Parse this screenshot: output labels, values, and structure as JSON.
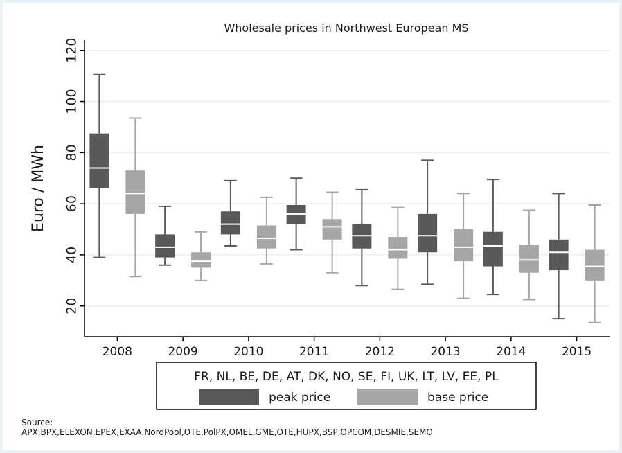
{
  "chart_data": {
    "type": "boxplot",
    "title": "Wholesale prices in Northwest European MS",
    "ylabel": "Euro / MWh",
    "ylim": [
      8,
      124
    ],
    "yticks": [
      20,
      40,
      60,
      80,
      100,
      120
    ],
    "grid": true,
    "categories": [
      "2008",
      "2009",
      "2010",
      "2011",
      "2012",
      "2013",
      "2014",
      "2015"
    ],
    "legend": {
      "title": "FR, NL, BE, DE, AT, DK, NO, SE, FI, UK, LT, LV, EE, PL",
      "position": "bottom"
    },
    "series": [
      {
        "name": "peak price",
        "color": "#595959",
        "boxes": [
          {
            "min": 39,
            "q1": 66,
            "median": 74,
            "q3": 87.5,
            "max": 110.5
          },
          {
            "min": 36,
            "q1": 39,
            "median": 43,
            "q3": 48,
            "max": 59
          },
          {
            "min": 43.5,
            "q1": 48,
            "median": 52,
            "q3": 57,
            "max": 69
          },
          {
            "min": 42,
            "q1": 52,
            "median": 56,
            "q3": 59.5,
            "max": 70
          },
          {
            "min": 28,
            "q1": 42.5,
            "median": 47.5,
            "q3": 52,
            "max": 65.5
          },
          {
            "min": 28.5,
            "q1": 41,
            "median": 47.5,
            "q3": 56,
            "max": 77
          },
          {
            "min": 24.5,
            "q1": 35.5,
            "median": 43.5,
            "q3": 49,
            "max": 69.5
          },
          {
            "min": 15,
            "q1": 34,
            "median": 41,
            "q3": 46,
            "max": 64
          }
        ]
      },
      {
        "name": "base price",
        "color": "#a6a6a6",
        "boxes": [
          {
            "min": 31.5,
            "q1": 56,
            "median": 64,
            "q3": 73,
            "max": 93.5
          },
          {
            "min": 30,
            "q1": 35,
            "median": 37.5,
            "q3": 41,
            "max": 49
          },
          {
            "min": 36.5,
            "q1": 42.5,
            "median": 46.5,
            "q3": 51.5,
            "max": 62.5
          },
          {
            "min": 33,
            "q1": 46,
            "median": 51,
            "q3": 54,
            "max": 64.5
          },
          {
            "min": 26.5,
            "q1": 38.5,
            "median": 42,
            "q3": 47,
            "max": 58.5
          },
          {
            "min": 23,
            "q1": 37.5,
            "median": 43,
            "q3": 50,
            "max": 64
          },
          {
            "min": 22.5,
            "q1": 33,
            "median": 38,
            "q3": 44,
            "max": 57.5
          },
          {
            "min": 13.5,
            "q1": 30,
            "median": 35.5,
            "q3": 42,
            "max": 59.5
          }
        ]
      }
    ]
  },
  "source": {
    "label": "Source:",
    "text": "APX,BPX,ELEXON,EPEX,EXAA,NordPool,OTE,PolPX,OMEL,GME,OTE,HUPX,BSP,OPCOM,DESMIE,SEMO"
  }
}
